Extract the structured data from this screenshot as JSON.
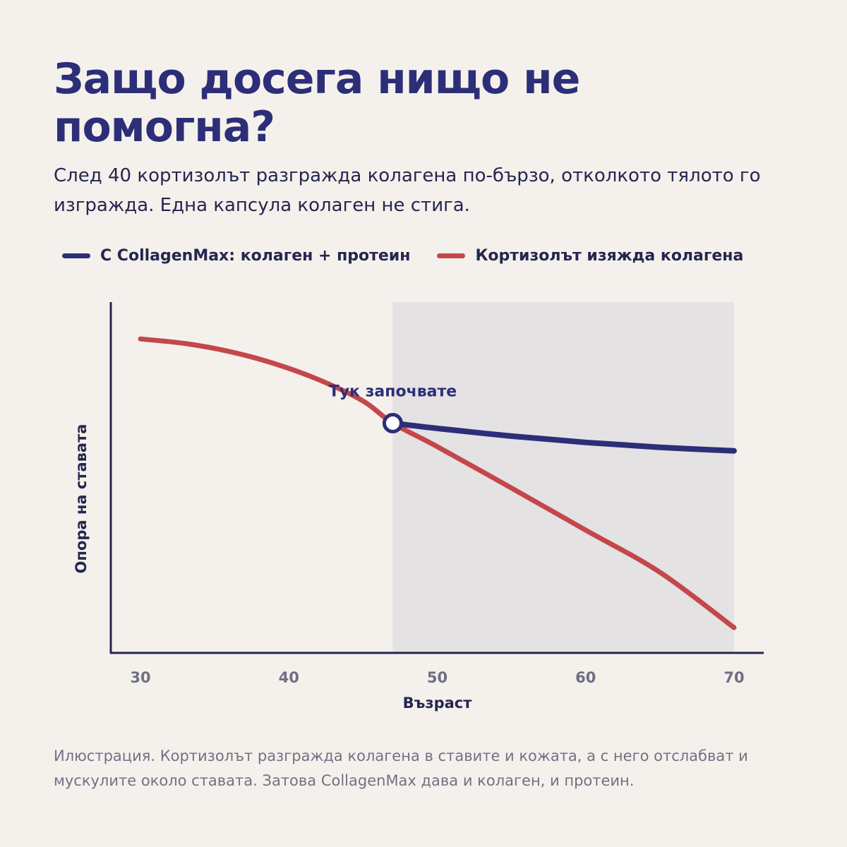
{
  "title": "Защо досега нищо не помогна?",
  "subtitle": "След 40 кортизолът разгражда колагена по-бързо, отколкото тялото го изгражда. Една капсула колаген не стига.",
  "footnote": "Илюстрация. Кортизолът разгражда колагена в ставите и кожата, а с него отслабват и мускулите около ставата. Затова CollagenMax дава и колаген, и протеин.",
  "colors": {
    "navy": "#2c2e78",
    "red": "#c4474a",
    "shade": "#e5e2e3",
    "axis": "#25264f",
    "tick": "#6f6f82"
  },
  "chart_data": {
    "type": "line",
    "xlabel": "Възраст",
    "ylabel": "Опора на ставата",
    "xticks": [
      30,
      40,
      50,
      60,
      70
    ],
    "xlim": [
      28,
      72
    ],
    "ylim": [
      0,
      100
    ],
    "grid": false,
    "legend_position": "top-left",
    "annotation": {
      "text": "Тук започвате",
      "x": 47,
      "y": 65.5
    },
    "shaded_region": {
      "x_from": 47,
      "x_to": 70
    },
    "series": [
      {
        "name": "С CollagenMax: колаген + протеин",
        "color": "#2c2e78",
        "x": [
          47,
          50,
          55,
          60,
          65,
          70
        ],
        "y": [
          65.5,
          64.0,
          61.8,
          60.0,
          58.6,
          57.6
        ]
      },
      {
        "name": "Кортизолът изяжда колагена",
        "color": "#c4474a",
        "x": [
          30,
          33,
          36,
          39,
          42,
          45,
          47,
          50,
          55,
          60,
          65,
          70
        ],
        "y": [
          89.5,
          88.2,
          85.9,
          82.5,
          77.9,
          71.8,
          65.5,
          58.8,
          47.0,
          35.0,
          23.0,
          7.2
        ]
      }
    ]
  }
}
